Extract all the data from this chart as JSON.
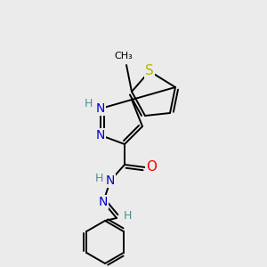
{
  "background_color": "#ebebeb",
  "atom_colors": {
    "C": "#000000",
    "N": "#0000cd",
    "O": "#ff0000",
    "S": "#b8b800",
    "H": "#4a8f8f"
  },
  "bond_color": "#000000",
  "fig_size": [
    3.0,
    3.0
  ],
  "dpi": 100
}
